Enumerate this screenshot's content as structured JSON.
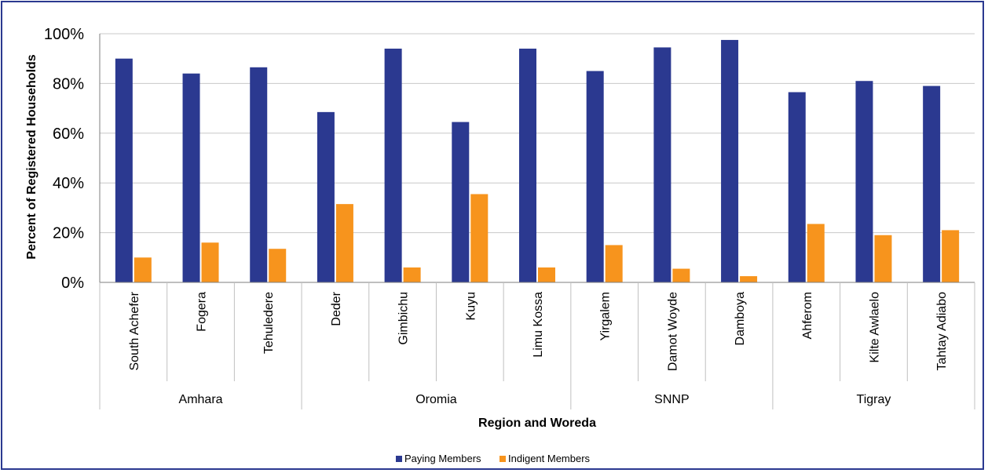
{
  "chart_data": {
    "type": "bar",
    "title": "",
    "xlabel": "Region and Woreda",
    "ylabel": "Percent of Registered Households",
    "ylim": [
      0,
      100
    ],
    "yticks": [
      "0%",
      "20%",
      "40%",
      "60%",
      "80%",
      "100%"
    ],
    "grid": true,
    "legend_position": "bottom",
    "categories": [
      "South Achefer",
      "Fogera",
      "Tehuledere",
      "Deder",
      "Gimbichu",
      "Kuyu",
      "Limu Kossa",
      "Yirgalem",
      "Damot Woyde",
      "Damboya",
      "Ahferom",
      "Kilte Awlaelo",
      "Tahtay Adiabo"
    ],
    "groups": [
      {
        "name": "Amhara",
        "count": 3
      },
      {
        "name": "Oromia",
        "count": 4
      },
      {
        "name": "SNNP",
        "count": 3
      },
      {
        "name": "Tigray",
        "count": 3
      }
    ],
    "series": [
      {
        "name": "Paying Members",
        "color": "#2b3990",
        "values": [
          90,
          84,
          86.5,
          68.5,
          94,
          64.5,
          94,
          85,
          94.5,
          97.5,
          76.5,
          81,
          79
        ]
      },
      {
        "name": "Indigent Members",
        "color": "#f7941d",
        "values": [
          10,
          16,
          13.5,
          31.5,
          6,
          35.5,
          6,
          15,
          5.5,
          2.5,
          23.5,
          19,
          21
        ]
      }
    ]
  }
}
